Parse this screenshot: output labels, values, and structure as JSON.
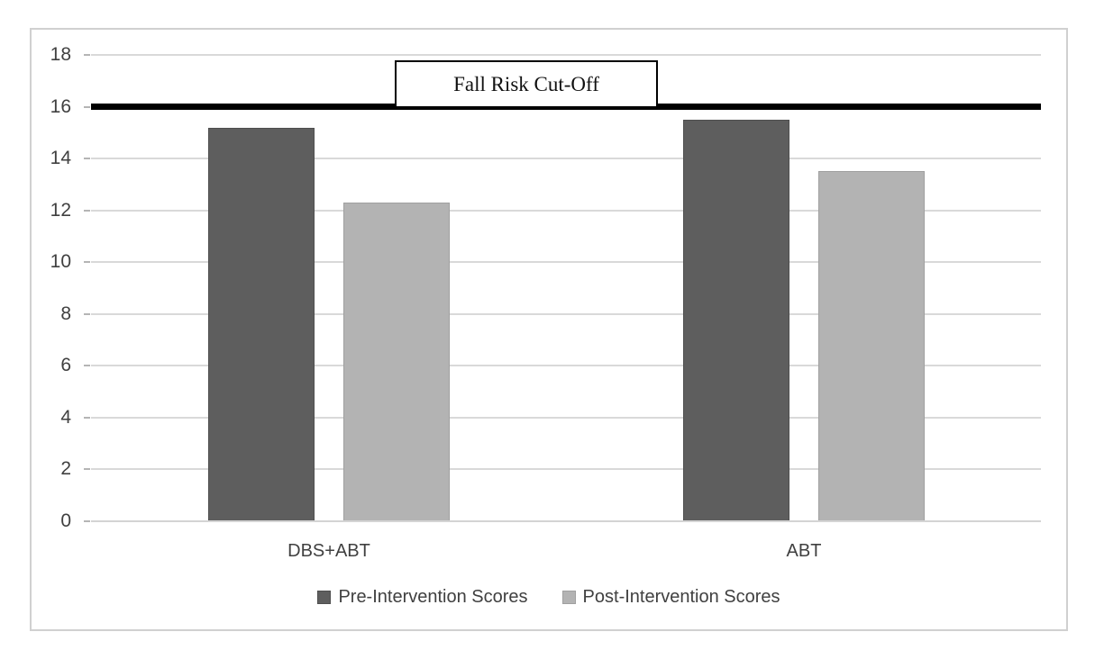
{
  "figure": {
    "background": "#ffffff",
    "frame_border_color": "#d0d0d0"
  },
  "chart_data": {
    "type": "bar",
    "title": "",
    "xlabel": "",
    "ylabel": "",
    "categories": [
      "DBS+ABT",
      "ABT"
    ],
    "series": [
      {
        "name": "Pre-Intervention Scores",
        "color": "#5E5E5E",
        "border": "#4f4f4f",
        "values": [
          15.2,
          15.5
        ]
      },
      {
        "name": "Post-Intervention Scores",
        "color": "#B3B3B3",
        "border": "#a0a0a0",
        "values": [
          12.3,
          13.5
        ]
      }
    ],
    "ylim": [
      0,
      18
    ],
    "y_ticks": [
      0,
      2,
      4,
      6,
      8,
      10,
      12,
      14,
      16,
      18
    ],
    "grid": "horizontal",
    "gridline_color": "#d9d9d9",
    "axis_text_color": "#404040",
    "legend_position": "bottom",
    "reference_line": {
      "value": 16,
      "label": "Fall Risk Cut-Off",
      "color": "#000000"
    }
  }
}
